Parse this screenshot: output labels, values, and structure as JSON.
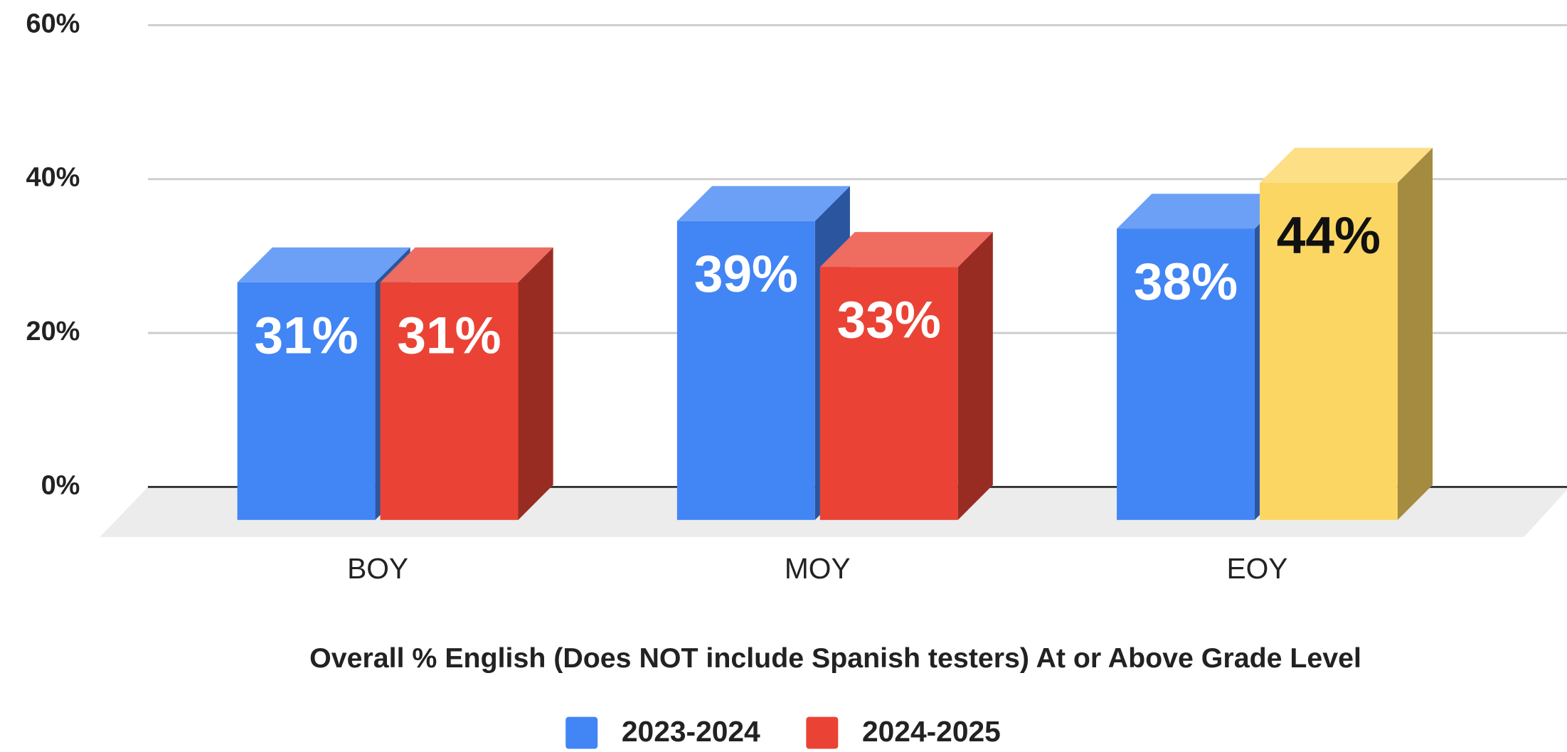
{
  "chart_data": {
    "type": "bar",
    "title": "Overall % English (Does NOT include Spanish testers) At or Above Grade Level",
    "categories": [
      "BOY",
      "MOY",
      "EOY"
    ],
    "series": [
      {
        "name": "2023-2024",
        "color": "#4285f4",
        "values": [
          31,
          39,
          38
        ],
        "value_labels": [
          "31%",
          "39%",
          "38%"
        ]
      },
      {
        "name": "2024-2025",
        "color": "#ea4335",
        "point_colors": [
          "#ea4335",
          "#ea4335",
          "#fcd663"
        ],
        "values": [
          31,
          33,
          44
        ],
        "value_labels": [
          "31%",
          "33%",
          "44%"
        ]
      }
    ],
    "ylim": [
      0,
      60
    ],
    "yticks": [
      {
        "value": 0,
        "label": "0%"
      },
      {
        "value": 20,
        "label": "20%"
      },
      {
        "value": 40,
        "label": "40%"
      },
      {
        "value": 60,
        "label": "60%"
      }
    ],
    "grid": true,
    "legend": "bottom"
  }
}
